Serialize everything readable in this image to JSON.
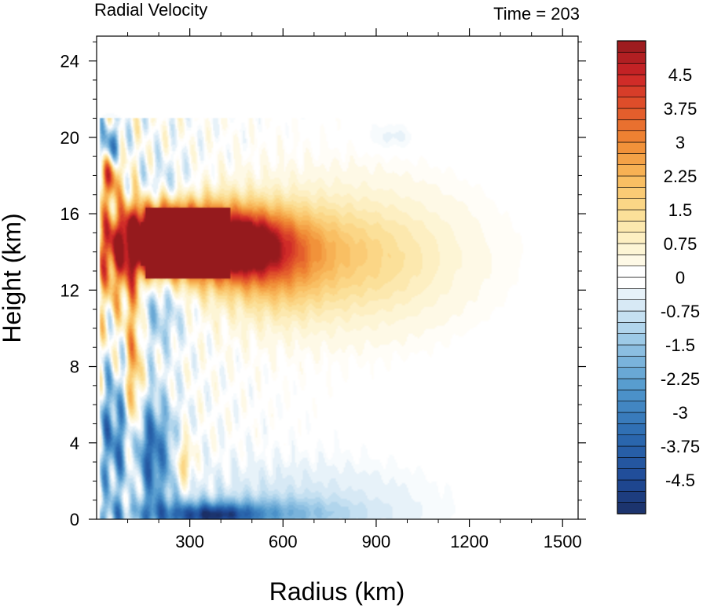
{
  "chart_data": {
    "type": "heatmap",
    "title_left": "Radial Velocity",
    "title_right": "Time = 203",
    "xlabel": "Radius (km)",
    "ylabel": "Height (km)",
    "xlim": [
      0,
      1550
    ],
    "ylim": [
      0,
      25.3
    ],
    "xticks": [
      300,
      600,
      900,
      1200,
      1500
    ],
    "yticks": [
      0,
      4,
      8,
      12,
      16,
      20,
      24
    ],
    "colorbar": {
      "min": -5.25,
      "max": 5.25,
      "step": 0.25,
      "labels": [
        "4.5",
        "3.75",
        "3",
        "2.25",
        "1.5",
        "0.75",
        "0",
        "-0.75",
        "-1.5",
        "-2.25",
        "-3",
        "-3.75",
        "-4.5"
      ],
      "label_values": [
        4.5,
        3.75,
        3,
        2.25,
        1.5,
        0.75,
        0,
        -0.75,
        -1.5,
        -2.25,
        -3,
        -3.75,
        -4.5
      ],
      "color_stops": [
        {
          "v": -5.25,
          "color": "#1b2f66"
        },
        {
          "v": -4.5,
          "color": "#1f4a97"
        },
        {
          "v": -3.5,
          "color": "#2c6ab0"
        },
        {
          "v": -2.5,
          "color": "#4f97cc"
        },
        {
          "v": -1.5,
          "color": "#93c4e4"
        },
        {
          "v": -0.75,
          "color": "#cfe5f3"
        },
        {
          "v": 0,
          "color": "#ffffff"
        },
        {
          "v": 0.75,
          "color": "#fdf3cc"
        },
        {
          "v": 1.5,
          "color": "#fbdc8f"
        },
        {
          "v": 2.25,
          "color": "#f8b95a"
        },
        {
          "v": 3,
          "color": "#f08a33"
        },
        {
          "v": 3.75,
          "color": "#e2552a"
        },
        {
          "v": 4.5,
          "color": "#cc2427"
        },
        {
          "v": 5.25,
          "color": "#951a1d"
        }
      ]
    },
    "features": [
      {
        "name": "upper-outflow-core",
        "r": 310,
        "z": 14.5,
        "sr": 200,
        "sz": 1.3,
        "v": 6.5
      },
      {
        "name": "outflow-core-head",
        "r": 200,
        "z": 15.0,
        "sr": 80,
        "sz": 1.1,
        "v": 2.5
      },
      {
        "name": "outflow-tail",
        "r": 480,
        "z": 14.2,
        "sr": 70,
        "sz": 1.0,
        "v": 2.0
      },
      {
        "name": "outflow-plume",
        "r": 700,
        "z": 13.8,
        "sr": 300,
        "sz": 2.6,
        "v": 1.3
      },
      {
        "name": "outflow-plume-mid",
        "r": 580,
        "z": 13.0,
        "sr": 110,
        "sz": 1.6,
        "v": 1.2
      },
      {
        "name": "outflow-plume-far",
        "r": 900,
        "z": 13.5,
        "sr": 160,
        "sz": 2.0,
        "v": 0.5
      },
      {
        "name": "low-level-inflow",
        "r": 330,
        "z": 0.25,
        "sr": 280,
        "sz": 0.55,
        "v": -2.4
      },
      {
        "name": "low-level-inflow-core",
        "r": 380,
        "z": 0.2,
        "sr": 80,
        "sz": 0.35,
        "v": -2.5
      },
      {
        "name": "low-level-inflow-far",
        "r": 600,
        "z": 1.0,
        "sr": 280,
        "sz": 1.4,
        "v": -0.7
      },
      {
        "name": "inner-inflow-band",
        "r": 170,
        "z": 3.5,
        "sr": 55,
        "sz": 2.0,
        "v": -3.5
      },
      {
        "name": "inner-inflow-band-2",
        "r": 50,
        "z": 4.5,
        "sr": 35,
        "sz": 2.2,
        "v": -2.5
      },
      {
        "name": "eyewall-positive",
        "r": 120,
        "z": 7.0,
        "sr": 18,
        "sz": 5.5,
        "v": 2.8
      },
      {
        "name": "upper-inner-positive",
        "r": 40,
        "z": 18.0,
        "sr": 25,
        "sz": 0.9,
        "v": 3.5
      },
      {
        "name": "upper-inner-negative",
        "r": 45,
        "z": 19.5,
        "sr": 25,
        "sz": 0.7,
        "v": -3.0
      },
      {
        "name": "upper-inner-orange",
        "r": 60,
        "z": 13.0,
        "sr": 45,
        "sz": 2.0,
        "v": 1.8
      },
      {
        "name": "mid-blue-2",
        "r": 200,
        "z": 11.0,
        "sr": 60,
        "sz": 1.5,
        "v": -1.5
      },
      {
        "name": "upper-blue",
        "r": 220,
        "z": 17.5,
        "sr": 70,
        "sz": 0.9,
        "v": -1.0
      },
      {
        "name": "low-level-warm",
        "r": 280,
        "z": 3.0,
        "sr": 20,
        "sz": 0.9,
        "v": 2.0
      },
      {
        "name": "far-faint-blue",
        "r": 950,
        "z": 20.0,
        "sr": 60,
        "sz": 0.5,
        "v": -0.35
      }
    ]
  }
}
